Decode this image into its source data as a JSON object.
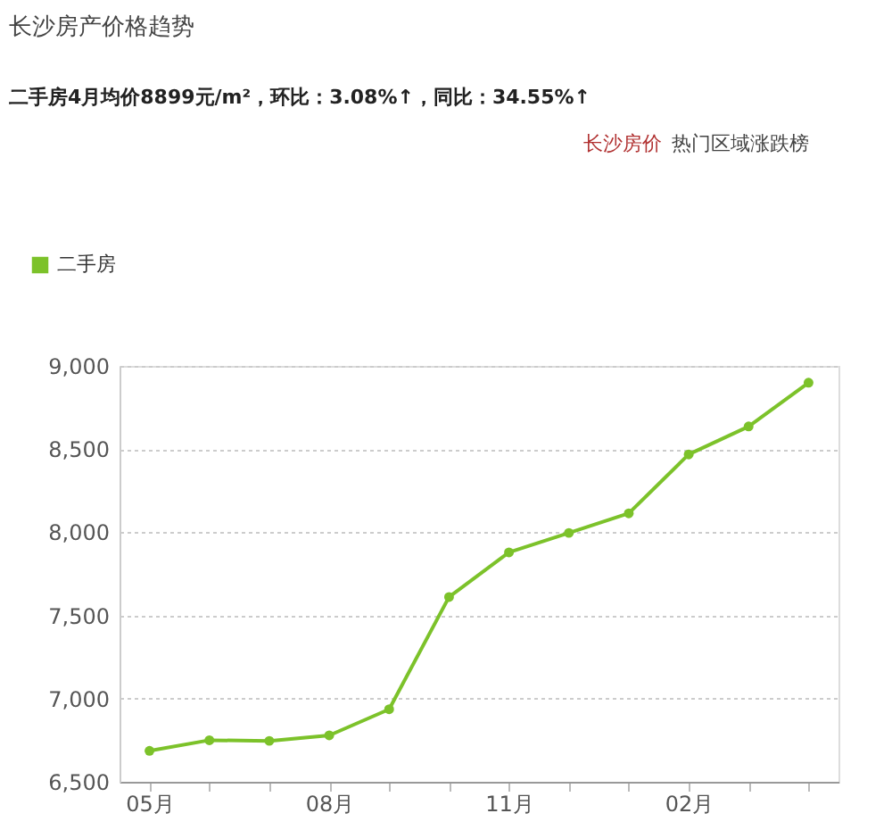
{
  "chart_data": {
    "type": "line",
    "title": "长沙房产价格趋势",
    "subtitle": "二手房4月均价8899元/m²，环比：3.08%↑，同比：34.55%↑",
    "annotations": [
      "长沙房价",
      "热门区域涨跌榜"
    ],
    "categories": [
      "05月",
      null,
      null,
      "08月",
      null,
      null,
      "11月",
      null,
      null,
      "02月",
      null,
      null
    ],
    "series": [
      {
        "name": "二手房",
        "color": "#7cc22a",
        "values": [
          6686,
          6750,
          6746,
          6779,
          6936,
          7611,
          7879,
          7996,
          8114,
          8468,
          8636,
          8899
        ]
      }
    ],
    "ylim": [
      6500,
      9000
    ],
    "yticks": [
      {
        "value": 6500,
        "label": "6,500"
      },
      {
        "value": 7000,
        "label": "7,000"
      },
      {
        "value": 7500,
        "label": "7,500"
      },
      {
        "value": 8000,
        "label": "8,000"
      },
      {
        "value": 8500,
        "label": "8,500"
      },
      {
        "value": 9000,
        "label": "9,000"
      }
    ],
    "grid": "y",
    "legend": "top left",
    "marker": "circle",
    "line_style": "solid"
  }
}
